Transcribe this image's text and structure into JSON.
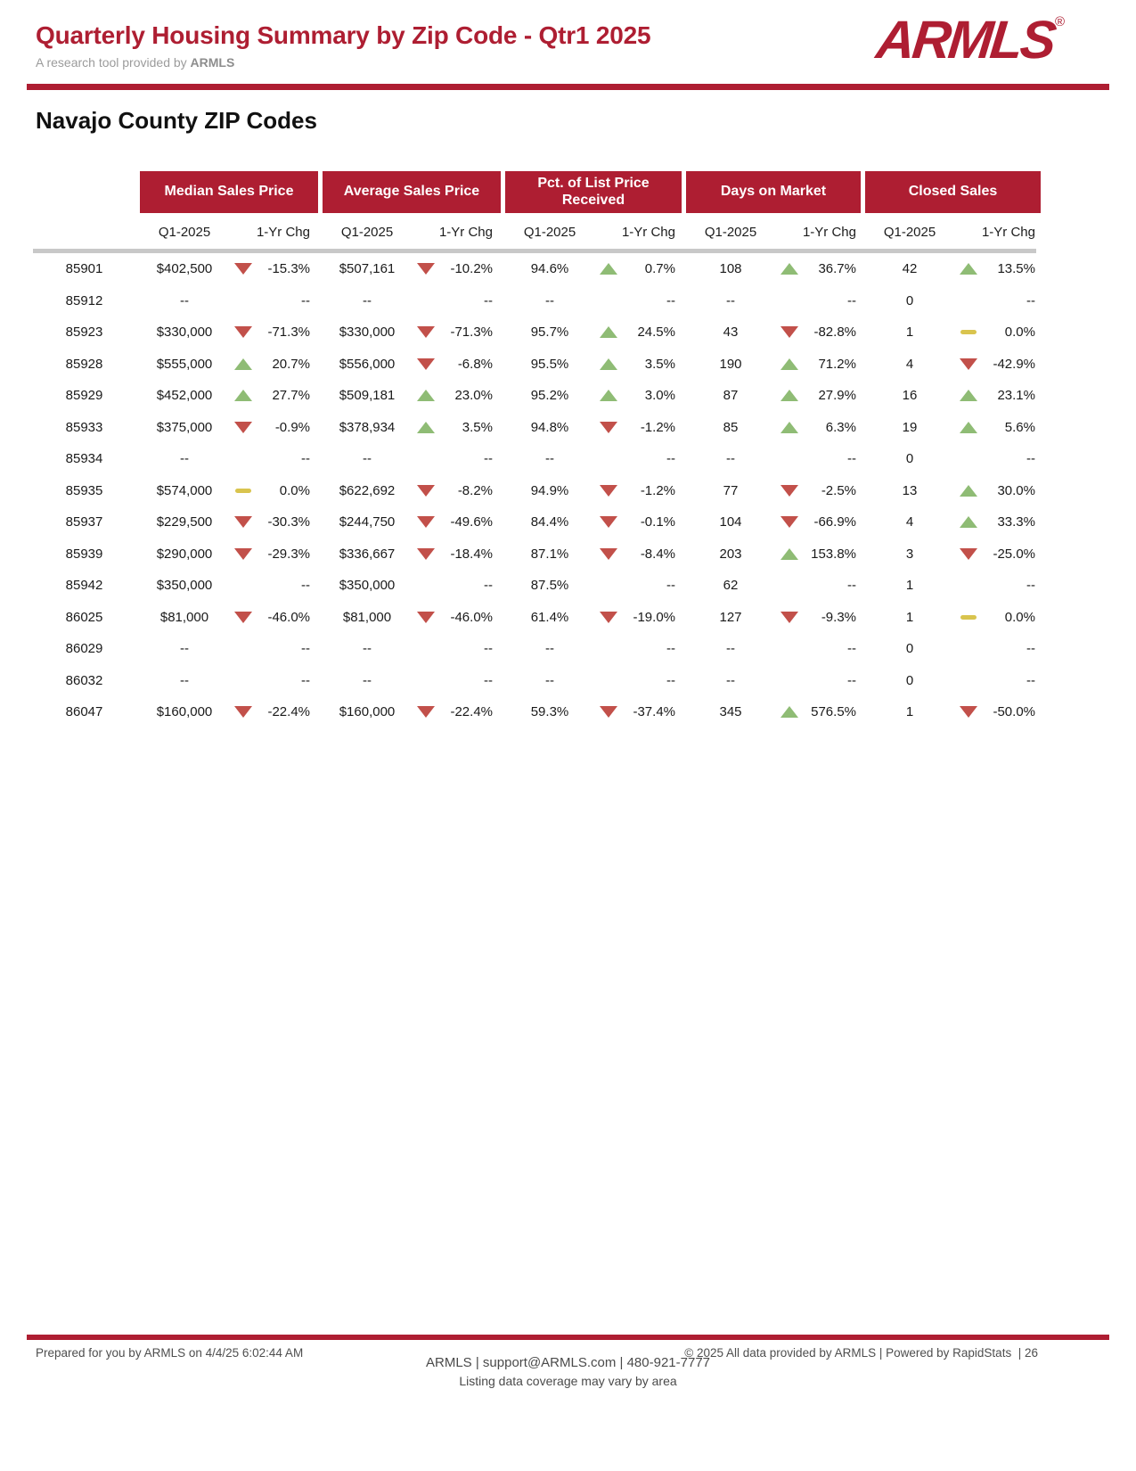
{
  "page": {
    "title": "Quarterly Housing Summary by Zip Code - Qtr1 2025",
    "subtitle_prefix": "A research tool provided by ",
    "subtitle_brand": "ARMLS",
    "section_title": "Navajo County ZIP Codes"
  },
  "logo": {
    "text": "ARMLS",
    "registered_mark": "®"
  },
  "colors": {
    "brand_red": "#AE1E32",
    "trend_up": "#8FBC75",
    "trend_down": "#C2504A",
    "trend_flat": "#D9C44E",
    "rule_gray": "#C8C8C8",
    "subtitle_gray": "#9B9B9B",
    "footer_gray": "#4E4E4E"
  },
  "icons": {
    "up": "triangle-up",
    "down": "triangle-down",
    "flat": "yellow-dash"
  },
  "table": {
    "column_groups": [
      "Median Sales Price",
      "Average Sales Price",
      "Pct. of List Price Received",
      "Days on Market",
      "Closed Sales"
    ],
    "subheader": {
      "period": "Q1-2025",
      "change": "1-Yr Chg"
    },
    "rows": [
      {
        "zip": "85901",
        "metrics": [
          {
            "value": "$402,500",
            "trend": "down",
            "change": "-15.3%"
          },
          {
            "value": "$507,161",
            "trend": "down",
            "change": "-10.2%"
          },
          {
            "value": "94.6%",
            "trend": "up",
            "change": "0.7%"
          },
          {
            "value": "108",
            "trend": "up",
            "change": "36.7%"
          },
          {
            "value": "42",
            "trend": "up",
            "change": "13.5%"
          }
        ]
      },
      {
        "zip": "85912",
        "metrics": [
          {
            "value": "--",
            "trend": "none",
            "change": "--"
          },
          {
            "value": "--",
            "trend": "none",
            "change": "--"
          },
          {
            "value": "--",
            "trend": "none",
            "change": "--"
          },
          {
            "value": "--",
            "trend": "none",
            "change": "--"
          },
          {
            "value": "0",
            "trend": "none",
            "change": "--"
          }
        ]
      },
      {
        "zip": "85923",
        "metrics": [
          {
            "value": "$330,000",
            "trend": "down",
            "change": "-71.3%"
          },
          {
            "value": "$330,000",
            "trend": "down",
            "change": "-71.3%"
          },
          {
            "value": "95.7%",
            "trend": "up",
            "change": "24.5%"
          },
          {
            "value": "43",
            "trend": "down",
            "change": "-82.8%"
          },
          {
            "value": "1",
            "trend": "flat",
            "change": "0.0%"
          }
        ]
      },
      {
        "zip": "85928",
        "metrics": [
          {
            "value": "$555,000",
            "trend": "up",
            "change": "20.7%"
          },
          {
            "value": "$556,000",
            "trend": "down",
            "change": "-6.8%"
          },
          {
            "value": "95.5%",
            "trend": "up",
            "change": "3.5%"
          },
          {
            "value": "190",
            "trend": "up",
            "change": "71.2%"
          },
          {
            "value": "4",
            "trend": "down",
            "change": "-42.9%"
          }
        ]
      },
      {
        "zip": "85929",
        "metrics": [
          {
            "value": "$452,000",
            "trend": "up",
            "change": "27.7%"
          },
          {
            "value": "$509,181",
            "trend": "up",
            "change": "23.0%"
          },
          {
            "value": "95.2%",
            "trend": "up",
            "change": "3.0%"
          },
          {
            "value": "87",
            "trend": "up",
            "change": "27.9%"
          },
          {
            "value": "16",
            "trend": "up",
            "change": "23.1%"
          }
        ]
      },
      {
        "zip": "85933",
        "metrics": [
          {
            "value": "$375,000",
            "trend": "down",
            "change": "-0.9%"
          },
          {
            "value": "$378,934",
            "trend": "up",
            "change": "3.5%"
          },
          {
            "value": "94.8%",
            "trend": "down",
            "change": "-1.2%"
          },
          {
            "value": "85",
            "trend": "up",
            "change": "6.3%"
          },
          {
            "value": "19",
            "trend": "up",
            "change": "5.6%"
          }
        ]
      },
      {
        "zip": "85934",
        "metrics": [
          {
            "value": "--",
            "trend": "none",
            "change": "--"
          },
          {
            "value": "--",
            "trend": "none",
            "change": "--"
          },
          {
            "value": "--",
            "trend": "none",
            "change": "--"
          },
          {
            "value": "--",
            "trend": "none",
            "change": "--"
          },
          {
            "value": "0",
            "trend": "none",
            "change": "--"
          }
        ]
      },
      {
        "zip": "85935",
        "metrics": [
          {
            "value": "$574,000",
            "trend": "flat",
            "change": "0.0%"
          },
          {
            "value": "$622,692",
            "trend": "down",
            "change": "-8.2%"
          },
          {
            "value": "94.9%",
            "trend": "down",
            "change": "-1.2%"
          },
          {
            "value": "77",
            "trend": "down",
            "change": "-2.5%"
          },
          {
            "value": "13",
            "trend": "up",
            "change": "30.0%"
          }
        ]
      },
      {
        "zip": "85937",
        "metrics": [
          {
            "value": "$229,500",
            "trend": "down",
            "change": "-30.3%"
          },
          {
            "value": "$244,750",
            "trend": "down",
            "change": "-49.6%"
          },
          {
            "value": "84.4%",
            "trend": "down",
            "change": "-0.1%"
          },
          {
            "value": "104",
            "trend": "down",
            "change": "-66.9%"
          },
          {
            "value": "4",
            "trend": "up",
            "change": "33.3%"
          }
        ]
      },
      {
        "zip": "85939",
        "metrics": [
          {
            "value": "$290,000",
            "trend": "down",
            "change": "-29.3%"
          },
          {
            "value": "$336,667",
            "trend": "down",
            "change": "-18.4%"
          },
          {
            "value": "87.1%",
            "trend": "down",
            "change": "-8.4%"
          },
          {
            "value": "203",
            "trend": "up",
            "change": "153.8%"
          },
          {
            "value": "3",
            "trend": "down",
            "change": "-25.0%"
          }
        ]
      },
      {
        "zip": "85942",
        "metrics": [
          {
            "value": "$350,000",
            "trend": "none",
            "change": "--"
          },
          {
            "value": "$350,000",
            "trend": "none",
            "change": "--"
          },
          {
            "value": "87.5%",
            "trend": "none",
            "change": "--"
          },
          {
            "value": "62",
            "trend": "none",
            "change": "--"
          },
          {
            "value": "1",
            "trend": "none",
            "change": "--"
          }
        ]
      },
      {
        "zip": "86025",
        "metrics": [
          {
            "value": "$81,000",
            "trend": "down",
            "change": "-46.0%"
          },
          {
            "value": "$81,000",
            "trend": "down",
            "change": "-46.0%"
          },
          {
            "value": "61.4%",
            "trend": "down",
            "change": "-19.0%"
          },
          {
            "value": "127",
            "trend": "down",
            "change": "-9.3%"
          },
          {
            "value": "1",
            "trend": "flat",
            "change": "0.0%"
          }
        ]
      },
      {
        "zip": "86029",
        "metrics": [
          {
            "value": "--",
            "trend": "none",
            "change": "--"
          },
          {
            "value": "--",
            "trend": "none",
            "change": "--"
          },
          {
            "value": "--",
            "trend": "none",
            "change": "--"
          },
          {
            "value": "--",
            "trend": "none",
            "change": "--"
          },
          {
            "value": "0",
            "trend": "none",
            "change": "--"
          }
        ]
      },
      {
        "zip": "86032",
        "metrics": [
          {
            "value": "--",
            "trend": "none",
            "change": "--"
          },
          {
            "value": "--",
            "trend": "none",
            "change": "--"
          },
          {
            "value": "--",
            "trend": "none",
            "change": "--"
          },
          {
            "value": "--",
            "trend": "none",
            "change": "--"
          },
          {
            "value": "0",
            "trend": "none",
            "change": "--"
          }
        ]
      },
      {
        "zip": "86047",
        "metrics": [
          {
            "value": "$160,000",
            "trend": "down",
            "change": "-22.4%"
          },
          {
            "value": "$160,000",
            "trend": "down",
            "change": "-22.4%"
          },
          {
            "value": "59.3%",
            "trend": "down",
            "change": "-37.4%"
          },
          {
            "value": "345",
            "trend": "up",
            "change": "576.5%"
          },
          {
            "value": "1",
            "trend": "down",
            "change": "-50.0%"
          }
        ]
      }
    ]
  },
  "footer": {
    "prepared": "Prepared for you by ARMLS on 4/4/25 6:02:44 AM",
    "copyright": "© 2025 All data provided by ARMLS | Powered by RapidStats",
    "page_label": "| 26",
    "contact": "ARMLS | support@ARMLS.com | 480-921-7777",
    "coverage_note": "Listing data coverage may vary by area"
  }
}
